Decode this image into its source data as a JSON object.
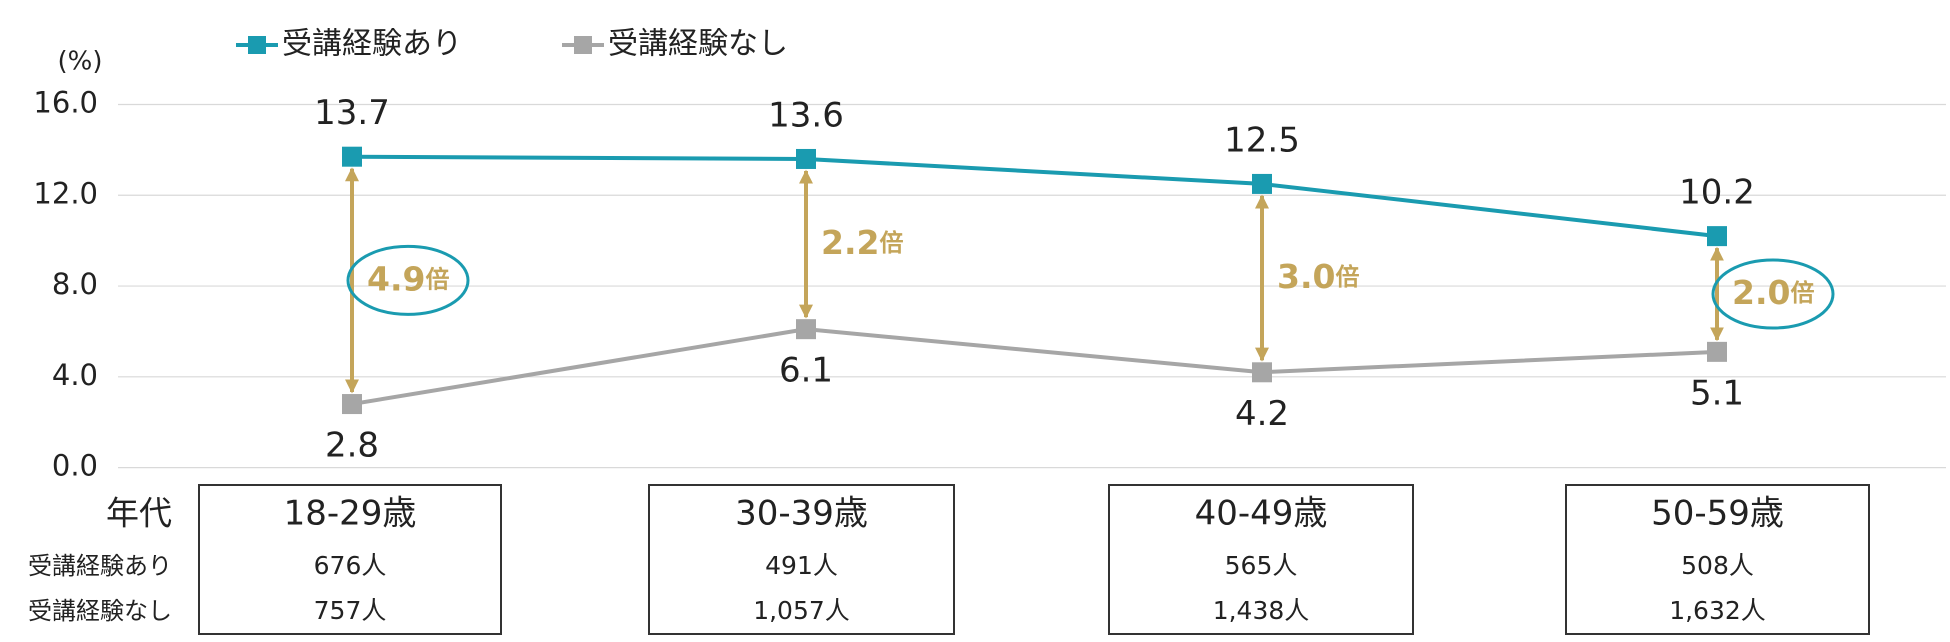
{
  "chart_data": {
    "type": "line",
    "y_unit": "(%)",
    "categories": [
      "18-29歳",
      "30-39歳",
      "40-49歳",
      "50-59歳"
    ],
    "series": [
      {
        "name": "受講経験あり",
        "color": "#1a9bb0",
        "values": [
          13.7,
          13.6,
          12.5,
          10.2
        ],
        "label_side": "above"
      },
      {
        "name": "受講経験なし",
        "color": "#a6a6a6",
        "values": [
          2.8,
          6.1,
          4.2,
          5.1
        ],
        "label_side": "below"
      }
    ],
    "ylim": [
      0,
      16
    ],
    "yticks": [
      {
        "value": 0,
        "label": "0.0"
      },
      {
        "value": 4,
        "label": "4.0"
      },
      {
        "value": 8,
        "label": "8.0"
      },
      {
        "value": 12,
        "label": "12.0"
      },
      {
        "value": 16,
        "label": "16.0"
      }
    ],
    "grid": true,
    "legend": "top-left",
    "annotations": [
      {
        "text": "4.9",
        "unit": "倍",
        "circled": true
      },
      {
        "text": "2.2",
        "unit": "倍",
        "circled": false
      },
      {
        "text": "3.0",
        "unit": "倍",
        "circled": false
      },
      {
        "text": "2.0",
        "unit": "倍",
        "circled": true
      }
    ],
    "annotation_color": "#c4a55a"
  },
  "table": {
    "row_labels": [
      "年代",
      "受講経験あり",
      "受講経験なし"
    ],
    "columns": [
      [
        "18-29歳",
        "676人",
        "757人"
      ],
      [
        "30-39歳",
        "491人",
        "1,057人"
      ],
      [
        "40-49歳",
        "565人",
        "1,438人"
      ],
      [
        "50-59歳",
        "508人",
        "1,632人"
      ]
    ]
  }
}
